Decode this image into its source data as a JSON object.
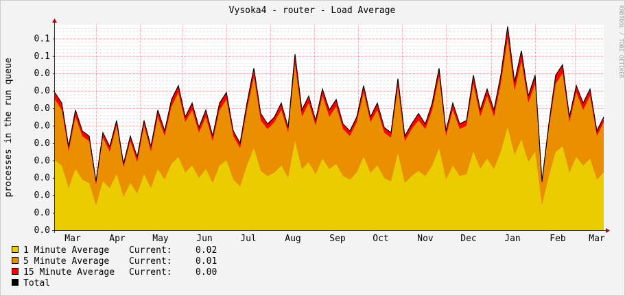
{
  "title": "Vysoka4 - router - Load Average",
  "watermark": "RRDTOOL / TOBI OETIKER",
  "colors": {
    "one_min": "#EACC00",
    "five_min": "#EA8F00",
    "fifteen_min": "#FF0000",
    "total": "#000000",
    "grid_major": "#F0A0A0",
    "grid_minor": "#DDDDDD",
    "background": "#F3F3F3",
    "canvas": "#FFFFFF"
  },
  "chart_data": {
    "type": "area",
    "stacked": true,
    "title": "Vysoka4 - router - Load Average",
    "ylabel": "processes in the run queue",
    "xlabel": "",
    "ylim": [
      0,
      0.118
    ],
    "grid": true,
    "legend_position": "bottom-left",
    "y_ticks": [
      {
        "value": 0.0,
        "label": "0.0"
      },
      {
        "value": 0.01,
        "label": "0.0"
      },
      {
        "value": 0.02,
        "label": "0.0"
      },
      {
        "value": 0.03,
        "label": "0.0"
      },
      {
        "value": 0.04,
        "label": "0.0"
      },
      {
        "value": 0.05,
        "label": "0.0"
      },
      {
        "value": 0.06,
        "label": "0.0"
      },
      {
        "value": 0.07,
        "label": "0.0"
      },
      {
        "value": 0.08,
        "label": "0.0"
      },
      {
        "value": 0.09,
        "label": "0.0"
      },
      {
        "value": 0.1,
        "label": "0.1"
      },
      {
        "value": 0.11,
        "label": "0.1"
      }
    ],
    "x_tick_labels": [
      "Mar",
      "Apr",
      "May",
      "Jun",
      "Jul",
      "Aug",
      "Sep",
      "Oct",
      "Nov",
      "Dec",
      "Jan",
      "Feb",
      "Mar"
    ],
    "series": [
      {
        "name": "1 Minute Average",
        "current": "0.02",
        "values": [
          0.04,
          0.037,
          0.024,
          0.035,
          0.029,
          0.027,
          0.014,
          0.028,
          0.024,
          0.032,
          0.019,
          0.027,
          0.021,
          0.032,
          0.024,
          0.035,
          0.029,
          0.038,
          0.042,
          0.033,
          0.037,
          0.03,
          0.035,
          0.027,
          0.037,
          0.04,
          0.029,
          0.025,
          0.037,
          0.047,
          0.034,
          0.031,
          0.033,
          0.037,
          0.03,
          0.051,
          0.035,
          0.039,
          0.032,
          0.041,
          0.035,
          0.038,
          0.031,
          0.029,
          0.033,
          0.042,
          0.033,
          0.037,
          0.03,
          0.028,
          0.044,
          0.027,
          0.031,
          0.034,
          0.031,
          0.037,
          0.047,
          0.029,
          0.037,
          0.031,
          0.032,
          0.045,
          0.035,
          0.041,
          0.035,
          0.045,
          0.059,
          0.043,
          0.052,
          0.039,
          0.045,
          0.014,
          0.031,
          0.045,
          0.048,
          0.033,
          0.042,
          0.037,
          0.041,
          0.029,
          0.033
        ]
      },
      {
        "name": "5 Minute Average",
        "current": "0.01",
        "values": [
          0.035,
          0.032,
          0.021,
          0.03,
          0.025,
          0.024,
          0.012,
          0.025,
          0.021,
          0.028,
          0.017,
          0.024,
          0.018,
          0.028,
          0.021,
          0.03,
          0.025,
          0.033,
          0.037,
          0.029,
          0.032,
          0.026,
          0.03,
          0.024,
          0.032,
          0.035,
          0.025,
          0.022,
          0.032,
          0.041,
          0.029,
          0.027,
          0.029,
          0.032,
          0.026,
          0.044,
          0.03,
          0.034,
          0.028,
          0.036,
          0.03,
          0.033,
          0.027,
          0.025,
          0.029,
          0.037,
          0.029,
          0.032,
          0.026,
          0.025,
          0.038,
          0.024,
          0.027,
          0.029,
          0.027,
          0.032,
          0.041,
          0.025,
          0.032,
          0.027,
          0.028,
          0.039,
          0.03,
          0.036,
          0.03,
          0.039,
          0.051,
          0.037,
          0.045,
          0.034,
          0.039,
          0.012,
          0.027,
          0.039,
          0.042,
          0.029,
          0.037,
          0.032,
          0.036,
          0.025,
          0.029
        ]
      },
      {
        "name": "15 Minute Average",
        "current": "0.00",
        "values": [
          0.004,
          0.004,
          0.003,
          0.004,
          0.003,
          0.003,
          0.002,
          0.003,
          0.003,
          0.003,
          0.002,
          0.003,
          0.003,
          0.003,
          0.003,
          0.004,
          0.003,
          0.004,
          0.004,
          0.003,
          0.004,
          0.003,
          0.004,
          0.003,
          0.004,
          0.004,
          0.003,
          0.003,
          0.004,
          0.005,
          0.004,
          0.003,
          0.003,
          0.004,
          0.003,
          0.006,
          0.004,
          0.004,
          0.003,
          0.004,
          0.004,
          0.004,
          0.003,
          0.003,
          0.003,
          0.004,
          0.003,
          0.004,
          0.003,
          0.003,
          0.005,
          0.003,
          0.003,
          0.004,
          0.003,
          0.004,
          0.005,
          0.003,
          0.004,
          0.003,
          0.003,
          0.005,
          0.004,
          0.004,
          0.004,
          0.005,
          0.007,
          0.005,
          0.006,
          0.004,
          0.005,
          0.002,
          0.003,
          0.005,
          0.005,
          0.003,
          0.004,
          0.004,
          0.004,
          0.003,
          0.003
        ]
      },
      {
        "name": "Total",
        "current": null,
        "values": null
      }
    ]
  },
  "legend": [
    {
      "label": "1 Minute Average ",
      "current_label": "Current:",
      "current": "0.02"
    },
    {
      "label": "5 Minute Average ",
      "current_label": "Current:",
      "current": "0.01"
    },
    {
      "label": "15 Minute Average",
      "current_label": "Current:",
      "current": "0.00"
    },
    {
      "label": "Total",
      "current_label": "",
      "current": ""
    }
  ]
}
